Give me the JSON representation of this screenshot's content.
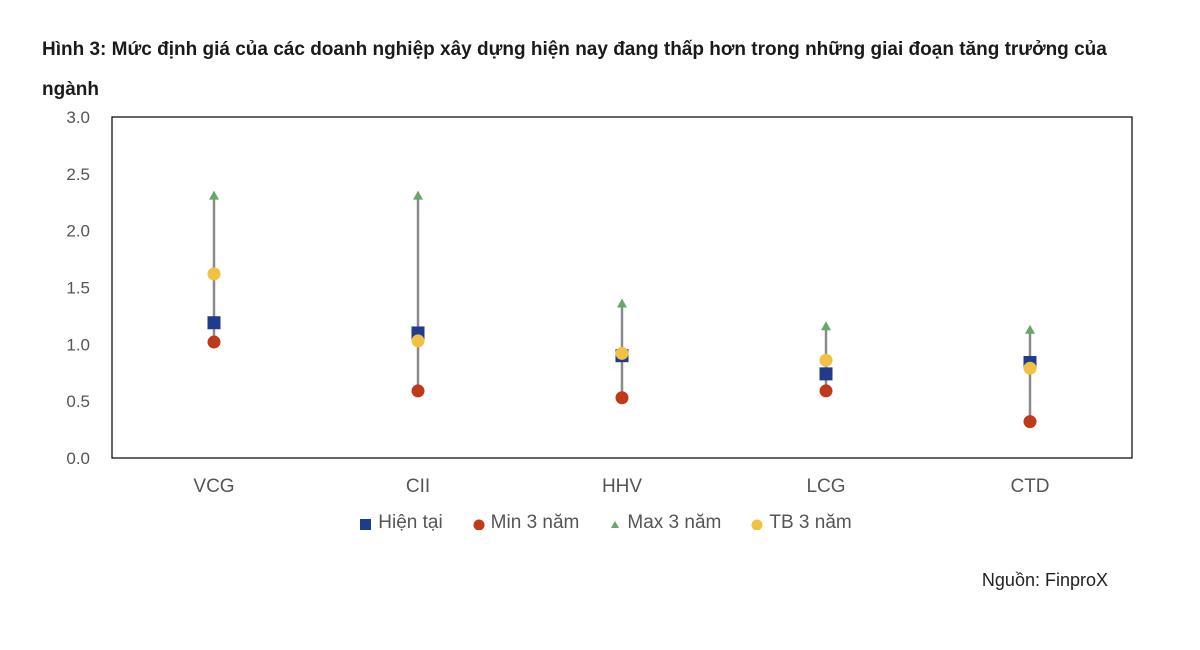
{
  "title": "Hình 3: Mức định giá của các doanh nghiệp xây dựng hiện nay đang thấp hơn trong những giai đoạn tăng trưởng của ngành",
  "source": "Nguồn: FinproX",
  "colors": {
    "hien_tai": "#1f3b8c",
    "min": "#c0391b",
    "max": "#6aa56a",
    "tb": "#f2c042",
    "range_line": "#8a8a8a",
    "axis": "#000000"
  },
  "chart_data": {
    "type": "scatter",
    "title": "Hình 3: Mức định giá của các doanh nghiệp xây dựng hiện nay đang thấp hơn trong những giai đoạn tăng trưởng của ngành",
    "categories": [
      "VCG",
      "CII",
      "HHV",
      "LCG",
      "CTD"
    ],
    "ylim": [
      0,
      3.0
    ],
    "yticks": [
      "0.0",
      "0.5",
      "1.0",
      "1.5",
      "2.0",
      "2.5",
      "3.0"
    ],
    "grid": false,
    "legend_position": "bottom",
    "series": [
      {
        "name": "Hiện tại",
        "marker": "square",
        "color": "#1f3b8c",
        "values": [
          1.19,
          1.1,
          0.9,
          0.74,
          0.84
        ]
      },
      {
        "name": "Min 3 năm",
        "marker": "circle",
        "color": "#c0391b",
        "values": [
          1.02,
          0.59,
          0.53,
          0.59,
          0.32
        ]
      },
      {
        "name": "Max 3 năm",
        "marker": "triangle",
        "color": "#6aa56a",
        "values": [
          2.3,
          2.3,
          1.35,
          1.15,
          1.12
        ]
      },
      {
        "name": "TB 3 năm",
        "marker": "circle",
        "color": "#f2c042",
        "values": [
          1.62,
          1.03,
          0.92,
          0.86,
          0.79
        ]
      }
    ]
  }
}
